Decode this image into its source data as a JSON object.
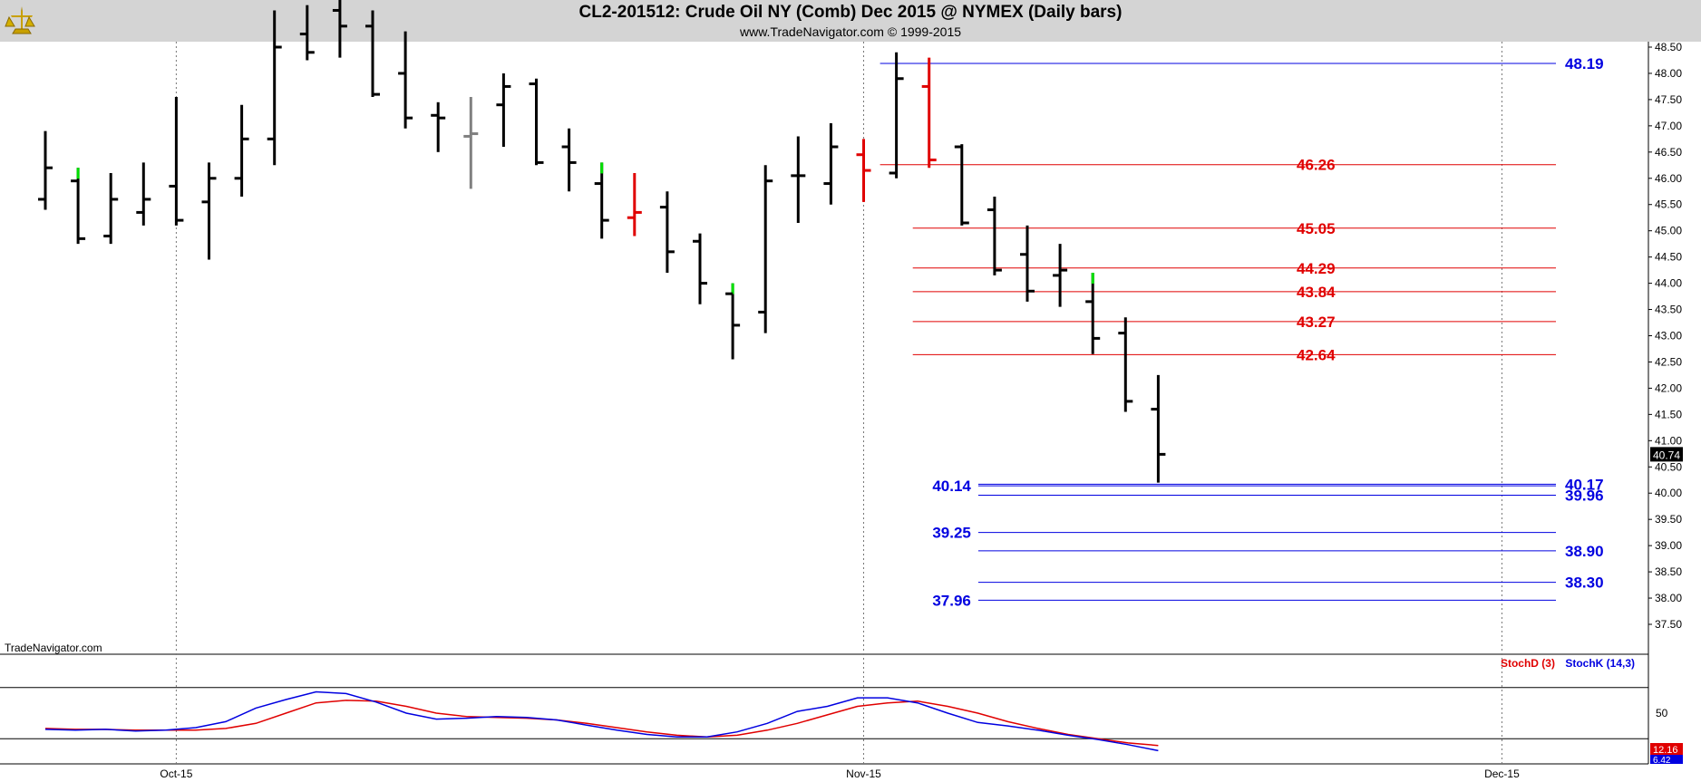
{
  "window": {
    "title": "CL2-201512:  Crude Oil NY (Comb) Dec 2015 @ NYMEX  (Daily bars)",
    "subtitle": "www.TradeNavigator.com © 1999-2015",
    "watermark": "TradeNavigator.com",
    "logo_icon": "trade-navigator-logo-icon"
  },
  "indicator_legend": {
    "stoch_d": "StochD (3)",
    "stoch_k": "StochK (14,3)"
  },
  "colors": {
    "up_bar": "#00e000",
    "down_bar": "#e00000",
    "bar": "#000000",
    "inside_bar": "#808080",
    "resistance": "#e00000",
    "support": "#0000e0",
    "stoch_d": "#e00000",
    "stoch_k": "#0000e0",
    "header_bg": "#d4d4d4"
  },
  "chart_data": [
    {
      "type": "ohlc",
      "symbol": "CL2-201512",
      "title": "CL2-201512:  Crude Oil NY (Comb) Dec 2015 @ NYMEX  (Daily bars)",
      "ylim": [
        37.5,
        48.5
      ],
      "y_ticks": [
        "48.50",
        "48.00",
        "47.50",
        "47.00",
        "46.50",
        "46.00",
        "45.50",
        "45.00",
        "44.50",
        "44.00",
        "43.50",
        "43.00",
        "42.50",
        "42.00",
        "41.50",
        "41.00",
        "40.50",
        "40.00",
        "39.50",
        "39.00",
        "38.50",
        "38.00",
        "37.50"
      ],
      "x_ticks": [
        {
          "label": "Oct-15",
          "index": 4
        },
        {
          "label": "Nov-15",
          "index": 25
        },
        {
          "label": "Dec-15",
          "index": 44.5
        }
      ],
      "last_price": "40.74",
      "bars": [
        {
          "o": 45.6,
          "h": 46.9,
          "l": 45.4,
          "c": 46.2,
          "kind": "normal"
        },
        {
          "o": 45.95,
          "h": 46.2,
          "l": 44.75,
          "c": 44.85,
          "kind": "up"
        },
        {
          "o": 44.9,
          "h": 46.1,
          "l": 44.75,
          "c": 45.6,
          "kind": "normal"
        },
        {
          "o": 45.35,
          "h": 46.3,
          "l": 45.1,
          "c": 45.6,
          "kind": "normal"
        },
        {
          "o": 45.85,
          "h": 47.55,
          "l": 45.1,
          "c": 45.2,
          "kind": "normal"
        },
        {
          "o": 45.55,
          "h": 46.3,
          "l": 44.45,
          "c": 46.0,
          "kind": "normal"
        },
        {
          "o": 46.0,
          "h": 47.4,
          "l": 45.65,
          "c": 46.75,
          "kind": "normal"
        },
        {
          "o": 46.75,
          "h": 49.2,
          "l": 46.25,
          "c": 48.5,
          "kind": "normal"
        },
        {
          "o": 48.75,
          "h": 49.3,
          "l": 48.25,
          "c": 48.4,
          "kind": "normal"
        },
        {
          "o": 49.2,
          "h": 49.4,
          "l": 48.3,
          "c": 48.9,
          "kind": "normal"
        },
        {
          "o": 48.9,
          "h": 49.2,
          "l": 47.55,
          "c": 47.6,
          "kind": "normal"
        },
        {
          "o": 48.0,
          "h": 48.8,
          "l": 46.95,
          "c": 47.15,
          "kind": "normal"
        },
        {
          "o": 47.2,
          "h": 47.45,
          "l": 46.5,
          "c": 47.15,
          "kind": "normal"
        },
        {
          "o": 46.8,
          "h": 47.55,
          "l": 45.8,
          "c": 46.85,
          "kind": "inside"
        },
        {
          "o": 47.4,
          "h": 48.0,
          "l": 46.6,
          "c": 47.75,
          "kind": "normal"
        },
        {
          "o": 47.8,
          "h": 47.9,
          "l": 46.25,
          "c": 46.3,
          "kind": "normal"
        },
        {
          "o": 46.6,
          "h": 46.95,
          "l": 45.75,
          "c": 46.3,
          "kind": "normal"
        },
        {
          "o": 45.9,
          "h": 46.3,
          "l": 44.85,
          "c": 45.2,
          "kind": "up"
        },
        {
          "o": 45.25,
          "h": 46.1,
          "l": 44.9,
          "c": 45.35,
          "kind": "down"
        },
        {
          "o": 45.45,
          "h": 45.75,
          "l": 44.2,
          "c": 44.6,
          "kind": "normal"
        },
        {
          "o": 44.8,
          "h": 44.95,
          "l": 43.6,
          "c": 44.0,
          "kind": "normal"
        },
        {
          "o": 43.8,
          "h": 44.0,
          "l": 42.55,
          "c": 43.2,
          "kind": "up"
        },
        {
          "o": 43.45,
          "h": 46.25,
          "l": 43.05,
          "c": 45.95,
          "kind": "normal"
        },
        {
          "o": 46.05,
          "h": 46.8,
          "l": 45.15,
          "c": 46.05,
          "kind": "normal"
        },
        {
          "o": 45.9,
          "h": 47.05,
          "l": 45.5,
          "c": 46.6,
          "kind": "normal"
        },
        {
          "o": 46.45,
          "h": 46.75,
          "l": 45.55,
          "c": 46.15,
          "kind": "down"
        },
        {
          "o": 46.1,
          "h": 48.4,
          "l": 46.0,
          "c": 47.9,
          "kind": "normal"
        },
        {
          "o": 47.75,
          "h": 48.3,
          "l": 46.2,
          "c": 46.35,
          "kind": "down"
        },
        {
          "o": 46.6,
          "h": 46.65,
          "l": 45.1,
          "c": 45.15,
          "kind": "normal"
        },
        {
          "o": 45.4,
          "h": 45.65,
          "l": 44.15,
          "c": 44.25,
          "kind": "normal"
        },
        {
          "o": 44.55,
          "h": 45.1,
          "l": 43.65,
          "c": 43.85,
          "kind": "normal"
        },
        {
          "o": 44.15,
          "h": 44.75,
          "l": 43.55,
          "c": 44.25,
          "kind": "normal"
        },
        {
          "o": 43.65,
          "h": 44.2,
          "l": 42.65,
          "c": 42.95,
          "kind": "up"
        },
        {
          "o": 43.05,
          "h": 43.35,
          "l": 41.55,
          "c": 41.75,
          "kind": "normal"
        },
        {
          "o": 41.6,
          "h": 42.25,
          "l": 40.2,
          "c": 40.74,
          "kind": "normal"
        }
      ],
      "levels": [
        {
          "value": 48.19,
          "label": "48.19",
          "color": "support",
          "from": 26,
          "label_side": "right"
        },
        {
          "value": 46.26,
          "label": "46.26",
          "color": "resistance",
          "from": 26,
          "label_side": "mid"
        },
        {
          "value": 45.05,
          "label": "45.05",
          "color": "resistance",
          "from": 27,
          "label_side": "mid"
        },
        {
          "value": 44.29,
          "label": "44.29",
          "color": "resistance",
          "from": 27,
          "label_side": "mid"
        },
        {
          "value": 43.84,
          "label": "43.84",
          "color": "resistance",
          "from": 27,
          "label_side": "mid"
        },
        {
          "value": 43.27,
          "label": "43.27",
          "color": "resistance",
          "from": 27,
          "label_side": "mid"
        },
        {
          "value": 42.64,
          "label": "42.64",
          "color": "resistance",
          "from": 27,
          "label_side": "mid"
        },
        {
          "value": 40.17,
          "label": "40.17",
          "color": "support",
          "from": 29,
          "label_side": "right"
        },
        {
          "value": 40.14,
          "label": "40.14",
          "color": "support",
          "from": 29,
          "label_side": "left"
        },
        {
          "value": 39.96,
          "label": "39.96",
          "color": "support",
          "from": 29,
          "label_side": "right"
        },
        {
          "value": 39.25,
          "label": "39.25",
          "color": "support",
          "from": 29,
          "label_side": "left"
        },
        {
          "value": 38.9,
          "label": "38.90",
          "color": "support",
          "from": 29,
          "label_side": "right"
        },
        {
          "value": 38.3,
          "label": "38.30",
          "color": "support",
          "from": 29,
          "label_side": "right"
        },
        {
          "value": 37.96,
          "label": "37.96",
          "color": "support",
          "from": 29,
          "label_side": "left"
        }
      ]
    },
    {
      "type": "line",
      "title": "",
      "ylim": [
        0,
        100
      ],
      "y_ticks": [
        "50"
      ],
      "reference_lines": [
        80,
        20
      ],
      "last_values": {
        "stoch_d": "12.16",
        "stoch_k": "6.42"
      },
      "series": [
        {
          "name": "StochD (3)",
          "color": "stoch_d",
          "values": [
            32,
            31,
            31,
            30,
            30,
            30,
            32,
            38,
            50,
            62,
            65,
            64,
            58,
            50,
            46,
            45,
            44,
            42,
            38,
            33,
            28,
            24,
            22,
            24,
            30,
            38,
            48,
            58,
            62,
            64,
            58,
            50,
            40,
            32,
            25,
            20,
            15,
            12
          ]
        },
        {
          "name": "StochK (14,3)",
          "color": "stoch_k",
          "values": [
            31,
            30,
            31,
            29,
            30,
            33,
            40,
            56,
            66,
            75,
            73,
            63,
            50,
            43,
            44,
            46,
            45,
            42,
            36,
            30,
            25,
            22,
            22,
            28,
            38,
            52,
            58,
            68,
            68,
            62,
            50,
            39,
            35,
            30,
            24,
            19,
            13,
            6
          ]
        }
      ]
    }
  ]
}
